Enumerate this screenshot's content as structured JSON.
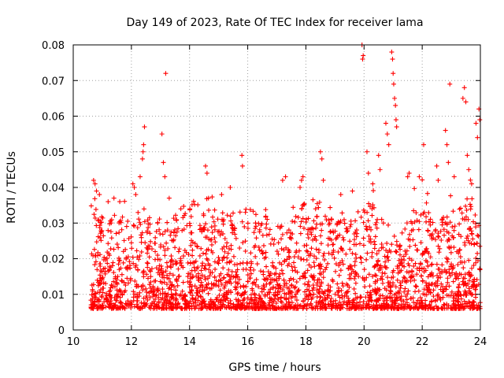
{
  "chart_data": {
    "type": "scatter",
    "title": "Day 149 of 2023, Rate Of TEC Index for receiver lama",
    "xlabel": "GPS time / hours",
    "ylabel": "ROTI / TECUs",
    "xlim": [
      10,
      24
    ],
    "ylim": [
      0,
      0.08
    ],
    "x_ticks": [
      10,
      12,
      14,
      16,
      18,
      20,
      22,
      24
    ],
    "x_tick_labels": [
      "10",
      "12",
      "14",
      "16",
      "18",
      "20",
      "22",
      "24"
    ],
    "y_ticks": [
      0,
      0.01,
      0.02,
      0.03,
      0.04,
      0.05,
      0.06,
      0.07,
      0.08
    ],
    "y_tick_labels": [
      "0",
      "0.01",
      "0.02",
      "0.03",
      "0.04",
      "0.05",
      "0.06",
      "0.07",
      "0.08"
    ],
    "grid": true,
    "marker": "plus",
    "color": "#ff0000",
    "series": [
      {
        "name": "ROTI",
        "data_window": [
          10.6,
          24.0
        ],
        "typical_range": [
          0.004,
          0.03
        ],
        "points": [
          [
            10.7,
            0.042
          ],
          [
            10.75,
            0.041
          ],
          [
            10.8,
            0.039
          ],
          [
            10.9,
            0.038
          ],
          [
            11.2,
            0.036
          ],
          [
            11.4,
            0.037
          ],
          [
            11.6,
            0.036
          ],
          [
            12.05,
            0.041
          ],
          [
            12.1,
            0.04
          ],
          [
            12.15,
            0.038
          ],
          [
            12.3,
            0.043
          ],
          [
            12.38,
            0.048
          ],
          [
            12.4,
            0.05
          ],
          [
            12.42,
            0.052
          ],
          [
            12.45,
            0.057
          ],
          [
            13.05,
            0.055
          ],
          [
            13.1,
            0.047
          ],
          [
            13.15,
            0.043
          ],
          [
            13.18,
            0.072
          ],
          [
            13.3,
            0.037
          ],
          [
            13.7,
            0.034
          ],
          [
            14.55,
            0.046
          ],
          [
            14.6,
            0.044
          ],
          [
            14.65,
            0.037
          ],
          [
            15.4,
            0.04
          ],
          [
            15.8,
            0.049
          ],
          [
            15.82,
            0.046
          ],
          [
            17.2,
            0.042
          ],
          [
            17.3,
            0.043
          ],
          [
            17.8,
            0.04
          ],
          [
            17.85,
            0.042
          ],
          [
            17.9,
            0.043
          ],
          [
            18.5,
            0.05
          ],
          [
            18.55,
            0.048
          ],
          [
            18.6,
            0.042
          ],
          [
            19.2,
            0.038
          ],
          [
            19.6,
            0.039
          ],
          [
            19.93,
            0.08
          ],
          [
            19.95,
            0.076
          ],
          [
            19.97,
            0.077
          ],
          [
            20.1,
            0.05
          ],
          [
            20.15,
            0.044
          ],
          [
            20.3,
            0.041
          ],
          [
            20.5,
            0.049
          ],
          [
            20.55,
            0.045
          ],
          [
            20.75,
            0.058
          ],
          [
            20.8,
            0.055
          ],
          [
            20.85,
            0.052
          ],
          [
            20.95,
            0.078
          ],
          [
            20.98,
            0.076
          ],
          [
            21.0,
            0.072
          ],
          [
            21.02,
            0.069
          ],
          [
            21.05,
            0.065
          ],
          [
            21.08,
            0.063
          ],
          [
            21.1,
            0.059
          ],
          [
            21.12,
            0.057
          ],
          [
            21.5,
            0.043
          ],
          [
            21.55,
            0.044
          ],
          [
            21.9,
            0.043
          ],
          [
            22.05,
            0.052
          ],
          [
            22.5,
            0.046
          ],
          [
            22.55,
            0.042
          ],
          [
            22.8,
            0.056
          ],
          [
            22.85,
            0.052
          ],
          [
            22.9,
            0.047
          ],
          [
            22.95,
            0.069
          ],
          [
            23.1,
            0.043
          ],
          [
            23.4,
            0.065
          ],
          [
            23.45,
            0.068
          ],
          [
            23.5,
            0.064
          ],
          [
            23.55,
            0.049
          ],
          [
            23.6,
            0.045
          ],
          [
            23.7,
            0.041
          ],
          [
            23.85,
            0.058
          ],
          [
            23.9,
            0.054
          ],
          [
            23.95,
            0.062
          ],
          [
            23.98,
            0.059
          ]
        ]
      }
    ]
  }
}
